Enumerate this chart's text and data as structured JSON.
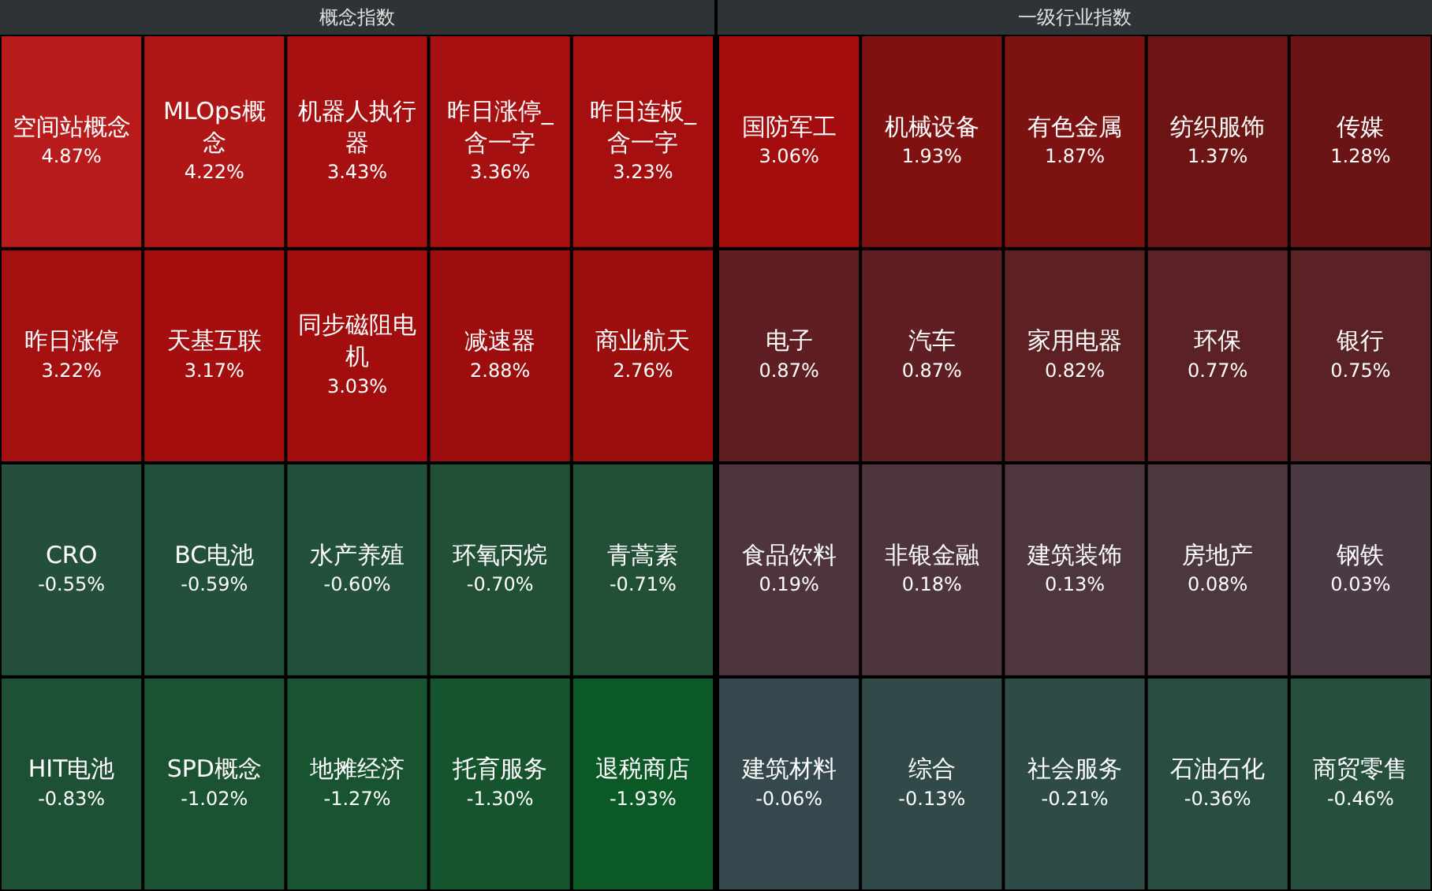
{
  "chart_data": [
    {
      "type": "other",
      "title": "概念指数",
      "categories": [
        "空间站概念",
        "MLOps概念",
        "机器人执行器",
        "昨日涨停_含一字",
        "昨日连板_含一字",
        "昨日涨停",
        "天基互联",
        "同步磁阻电机",
        "减速器",
        "商业航天",
        "CRO",
        "BC电池",
        "水产养殖",
        "环氧丙烷",
        "青蒿素",
        "HIT电池",
        "SPD概念",
        "地摊经济",
        "托育服务",
        "退税商店"
      ],
      "values": [
        4.87,
        4.22,
        3.43,
        3.36,
        3.23,
        3.22,
        3.17,
        3.03,
        2.88,
        2.76,
        -0.55,
        -0.59,
        -0.6,
        -0.7,
        -0.71,
        -0.83,
        -1.02,
        -1.27,
        -1.3,
        -1.93
      ],
      "value_labels": [
        "4.87%",
        "4.22%",
        "3.43%",
        "3.36%",
        "3.23%",
        "3.22%",
        "3.17%",
        "3.03%",
        "2.88%",
        "2.76%",
        "-0.55%",
        "-0.59%",
        "-0.60%",
        "-0.70%",
        "-0.71%",
        "-0.83%",
        "-1.02%",
        "-1.27%",
        "-1.30%",
        "-1.93%"
      ]
    },
    {
      "type": "other",
      "title": "一级行业指数",
      "categories": [
        "国防军工",
        "机械设备",
        "有色金属",
        "纺织服饰",
        "传媒",
        "电子",
        "汽车",
        "家用电器",
        "环保",
        "银行",
        "食品饮料",
        "非银金融",
        "建筑装饰",
        "房地产",
        "钢铁",
        "建筑材料",
        "综合",
        "社会服务",
        "石油石化",
        "商贸零售"
      ],
      "values": [
        3.06,
        1.93,
        1.87,
        1.37,
        1.28,
        0.87,
        0.87,
        0.82,
        0.77,
        0.75,
        0.19,
        0.18,
        0.13,
        0.08,
        0.03,
        -0.06,
        -0.13,
        -0.21,
        -0.36,
        -0.46
      ],
      "value_labels": [
        "3.06%",
        "1.93%",
        "1.87%",
        "1.37%",
        "1.28%",
        "0.87%",
        "0.87%",
        "0.82%",
        "0.77%",
        "0.75%",
        "0.19%",
        "0.18%",
        "0.13%",
        "0.08%",
        "0.03%",
        "-0.06%",
        "-0.13%",
        "-0.21%",
        "-0.36%",
        "-0.46%"
      ]
    }
  ]
}
